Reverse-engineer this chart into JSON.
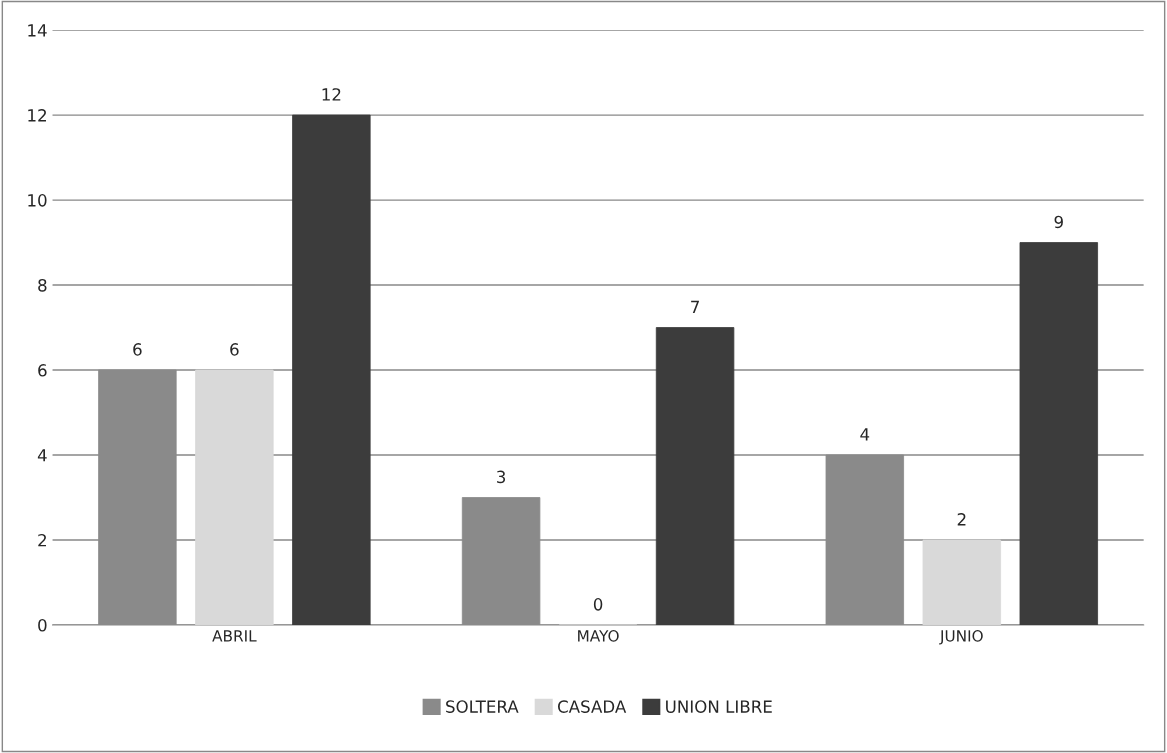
{
  "chart_data": {
    "type": "bar",
    "categories": [
      "ABRIL",
      "MAYO",
      "JUNIO"
    ],
    "series": [
      {
        "name": "SOLTERA",
        "color": "#8a8a8a",
        "values": [
          6,
          3,
          4
        ]
      },
      {
        "name": "CASADA",
        "color": "#d9d9d9",
        "values": [
          6,
          0,
          2
        ]
      },
      {
        "name": "UNION LIBRE",
        "color": "#3c3c3c",
        "values": [
          12,
          7,
          9
        ]
      }
    ],
    "ylim": [
      0,
      14
    ],
    "yticks": [
      0,
      2,
      4,
      6,
      8,
      10,
      12,
      14
    ],
    "grid": "y",
    "legend": "bottom",
    "data_labels": true
  }
}
